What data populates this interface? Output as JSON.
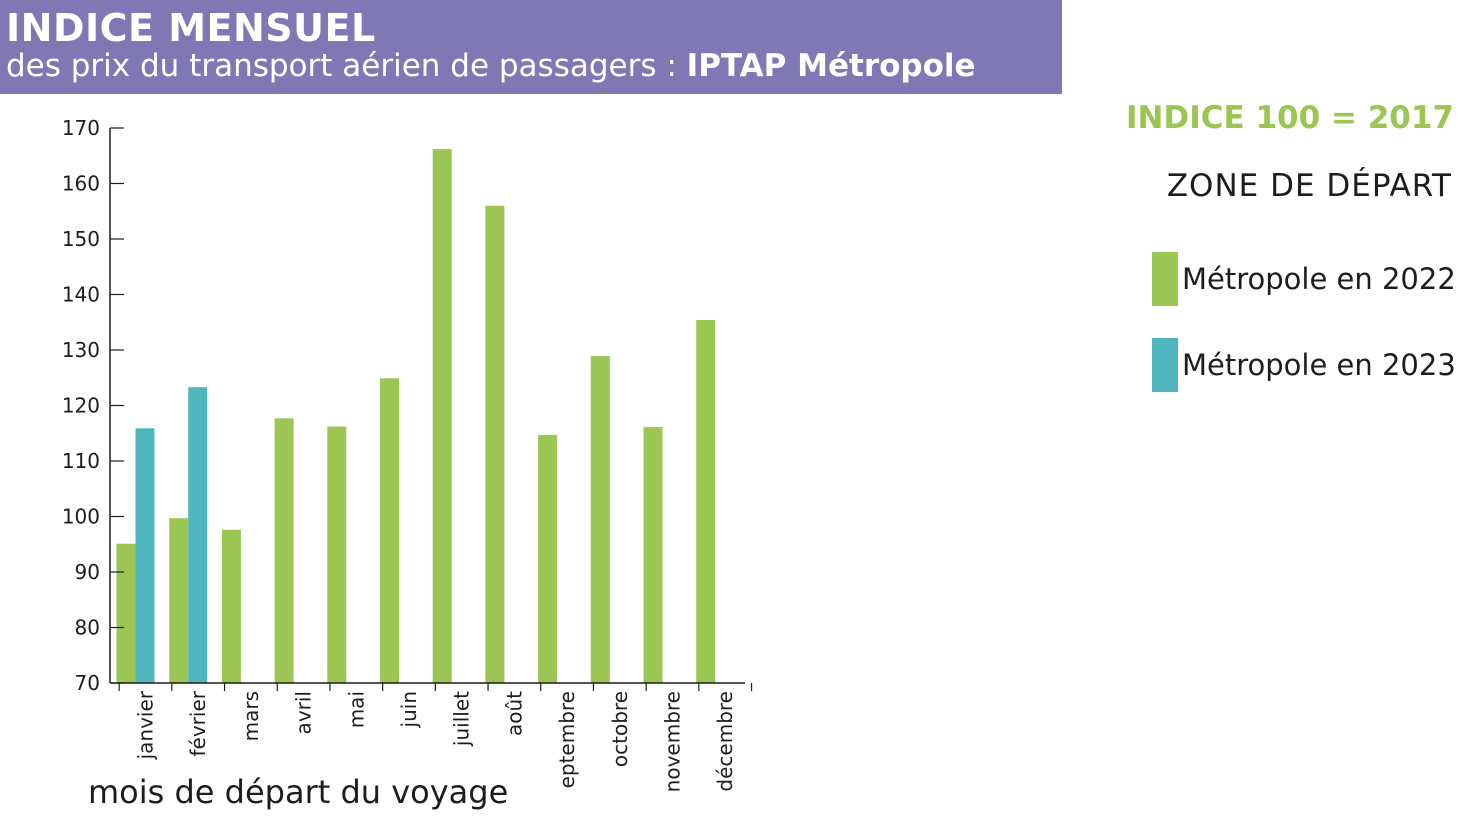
{
  "header": {
    "title": "INDICE MENSUEL",
    "subtitle_prefix": "des prix du transport aérien de passagers :",
    "subtitle_bold": "IPTAP Métropole"
  },
  "index_note": "INDICE 100 = 2017",
  "legend": {
    "title": "ZONE DE DÉPART",
    "items": [
      {
        "label": "Métropole en 2022",
        "color": "#9bc653"
      },
      {
        "label": "Métropole en 2023",
        "color": "#50b6bd"
      }
    ]
  },
  "chart_data": {
    "type": "bar",
    "title": "",
    "xlabel": "mois de départ du voyage",
    "ylabel": "",
    "ylim": [
      70,
      170
    ],
    "yticks": [
      70,
      80,
      90,
      100,
      110,
      120,
      130,
      140,
      150,
      160,
      170
    ],
    "grid": false,
    "legend_position": "right",
    "categories": [
      "janvier",
      "février",
      "mars",
      "avril",
      "mai",
      "juin",
      "juillet",
      "août",
      "eptembre",
      "octobre",
      "novembre",
      "décembre"
    ],
    "series": [
      {
        "name": "Métropole en 2022",
        "color": "#9bc653",
        "values": [
          95.1,
          99.7,
          97.6,
          117.7,
          116.2,
          124.9,
          166.2,
          156.0,
          114.7,
          128.9,
          116.1,
          135.4
        ]
      },
      {
        "name": "Métropole en 2023",
        "color": "#50b6bd",
        "values": [
          115.9,
          123.3,
          null,
          null,
          null,
          null,
          null,
          null,
          null,
          null,
          null,
          null
        ]
      }
    ]
  }
}
